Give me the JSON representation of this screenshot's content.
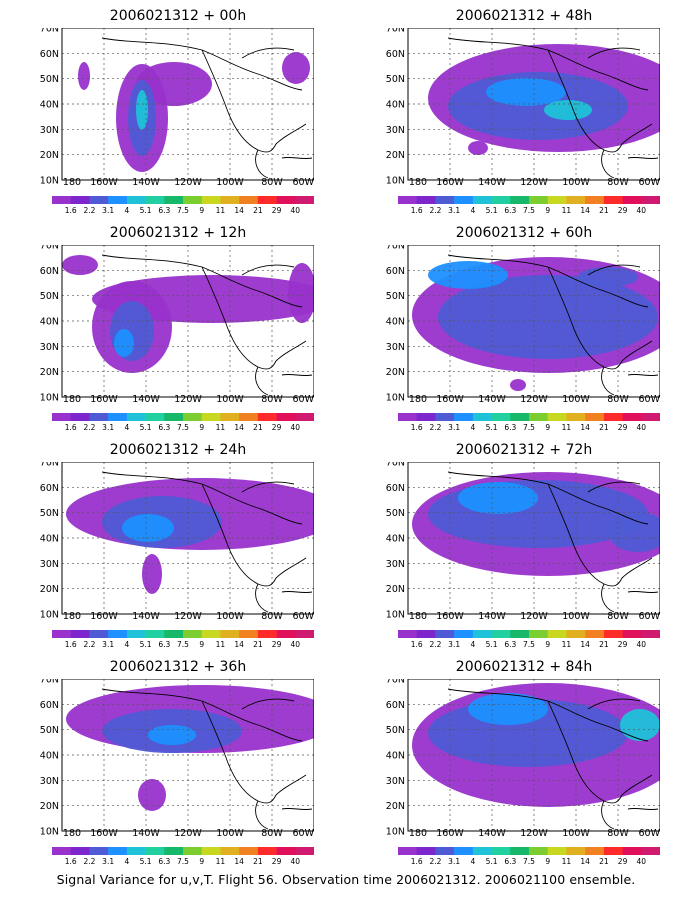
{
  "figure": {
    "footer": "Signal Variance for u,v,T. Flight 56. Observation time 2006021312. 2006021100 ensemble.",
    "lat_labels": [
      "70N",
      "60N",
      "50N",
      "40N",
      "30N",
      "20N",
      "10N"
    ],
    "lon_labels": [
      "180",
      "160W",
      "140W",
      "120W",
      "100W",
      "80W",
      "60W"
    ],
    "colorbar": {
      "labels": [
        "1.6",
        "2.2",
        "3.1",
        "4",
        "5.1",
        "6.3",
        "7.5",
        "9",
        "11",
        "14",
        "21",
        "29",
        "40"
      ],
      "colors": [
        "#9932cc",
        "#7d26cd",
        "#4f5bd5",
        "#1e90ff",
        "#1fc2d8",
        "#20d0a0",
        "#17b86a",
        "#7ccd30",
        "#c8d820",
        "#e0b020",
        "#f08020",
        "#ff2a2a",
        "#e0105a",
        "#d01a70"
      ]
    }
  },
  "panels": [
    {
      "title": "2006021312 + 00h"
    },
    {
      "title": "2006021312 + 48h"
    },
    {
      "title": "2006021312 + 12h"
    },
    {
      "title": "2006021312 + 60h"
    },
    {
      "title": "2006021312 + 24h"
    },
    {
      "title": "2006021312 + 72h"
    },
    {
      "title": "2006021312 + 36h"
    },
    {
      "title": "2006021312 + 84h"
    }
  ]
}
